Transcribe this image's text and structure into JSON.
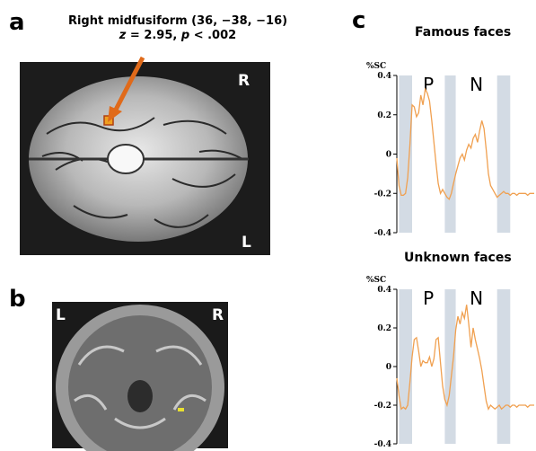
{
  "panel_a": {
    "letter": "a",
    "caption_line1": "Right midfusiform (36, −38, −16)",
    "caption_z": "z",
    "caption_z_value": " = 2.95, ",
    "caption_p": "p",
    "caption_p_value": " < .002",
    "orient_right": "R",
    "orient_left": "L"
  },
  "panel_b": {
    "letter": "b",
    "orient_left": "L",
    "orient_right": "R"
  },
  "panel_c": {
    "letter": "c"
  },
  "colors": {
    "line": "#f0a050",
    "shade": "#d3dbe4",
    "arrow": "#e06a1a",
    "activation": "#f0a020"
  },
  "chart_data": [
    {
      "type": "line",
      "title": "Famous faces",
      "ylabel": "%SC",
      "ylim": [
        -0.4,
        0.4
      ],
      "yticks": [
        0.4,
        0.2,
        0,
        -0.2,
        -0.4
      ],
      "ytick_labels": [
        "0.4",
        "0.2",
        "0",
        "-0.2",
        "-0.4"
      ],
      "phase_labels": [
        "P",
        "N"
      ],
      "x": [
        0,
        1,
        2,
        3,
        4,
        5,
        6,
        7,
        8,
        9,
        10,
        11,
        12,
        13,
        14,
        15,
        16,
        17,
        18,
        19,
        20,
        21,
        22,
        23,
        24,
        25,
        26,
        27,
        28,
        29,
        30,
        31,
        32,
        33,
        34,
        35,
        36,
        37,
        38,
        39,
        40,
        41,
        42,
        43,
        44,
        45,
        46,
        47,
        48,
        49,
        50,
        51,
        52,
        53,
        54,
        55,
        56,
        57,
        58,
        59,
        60,
        61,
        62,
        63
      ],
      "values": [
        -0.02,
        -0.16,
        -0.21,
        -0.21,
        -0.2,
        -0.12,
        0.05,
        0.25,
        0.24,
        0.19,
        0.21,
        0.3,
        0.25,
        0.33,
        0.31,
        0.27,
        0.17,
        0.06,
        -0.05,
        -0.15,
        -0.2,
        -0.18,
        -0.2,
        -0.22,
        -0.23,
        -0.2,
        -0.15,
        -0.1,
        -0.06,
        -0.02,
        0.0,
        -0.03,
        0.02,
        0.05,
        0.03,
        0.08,
        0.1,
        0.06,
        0.12,
        0.17,
        0.13,
        0.02,
        -0.1,
        -0.16,
        -0.18,
        -0.2,
        -0.22,
        -0.21,
        -0.2,
        -0.19,
        -0.2,
        -0.2,
        -0.21,
        -0.2,
        -0.2,
        -0.21,
        -0.2,
        -0.2,
        -0.2,
        -0.2,
        -0.21,
        -0.2,
        -0.2,
        -0.2
      ],
      "shaded_x_ranges": [
        [
          1,
          7
        ],
        [
          22,
          27
        ],
        [
          46,
          52
        ]
      ]
    },
    {
      "type": "line",
      "title": "Unknown faces",
      "ylabel": "%SC",
      "ylim": [
        -0.4,
        0.4
      ],
      "yticks": [
        0.4,
        0.2,
        0,
        -0.2,
        -0.4
      ],
      "ytick_labels": [
        "0.4",
        "0.2",
        "0",
        "-0.2",
        "-0.4"
      ],
      "phase_labels": [
        "P",
        "N"
      ],
      "x": [
        0,
        1,
        2,
        3,
        4,
        5,
        6,
        7,
        8,
        9,
        10,
        11,
        12,
        13,
        14,
        15,
        16,
        17,
        18,
        19,
        20,
        21,
        22,
        23,
        24,
        25,
        26,
        27,
        28,
        29,
        30,
        31,
        32,
        33,
        34,
        35,
        36,
        37,
        38,
        39,
        40,
        41,
        42,
        43,
        44,
        45,
        46,
        47,
        48,
        49,
        50,
        51,
        52,
        53,
        54,
        55,
        56,
        57,
        58,
        59,
        60,
        61,
        62,
        63
      ],
      "values": [
        -0.06,
        -0.15,
        -0.22,
        -0.21,
        -0.22,
        -0.2,
        -0.08,
        0.05,
        0.14,
        0.15,
        0.08,
        0.0,
        0.03,
        0.02,
        0.02,
        0.05,
        0.0,
        0.04,
        0.14,
        0.15,
        0.02,
        -0.1,
        -0.17,
        -0.2,
        -0.15,
        -0.05,
        0.05,
        0.19,
        0.26,
        0.22,
        0.28,
        0.25,
        0.32,
        0.22,
        0.1,
        0.2,
        0.14,
        0.09,
        0.04,
        -0.02,
        -0.1,
        -0.18,
        -0.22,
        -0.2,
        -0.21,
        -0.22,
        -0.21,
        -0.2,
        -0.22,
        -0.21,
        -0.2,
        -0.2,
        -0.21,
        -0.2,
        -0.2,
        -0.21,
        -0.2,
        -0.2,
        -0.2,
        -0.2,
        -0.21,
        -0.2,
        -0.2,
        -0.2
      ],
      "shaded_x_ranges": [
        [
          1,
          7
        ],
        [
          22,
          27
        ],
        [
          46,
          52
        ]
      ]
    }
  ]
}
